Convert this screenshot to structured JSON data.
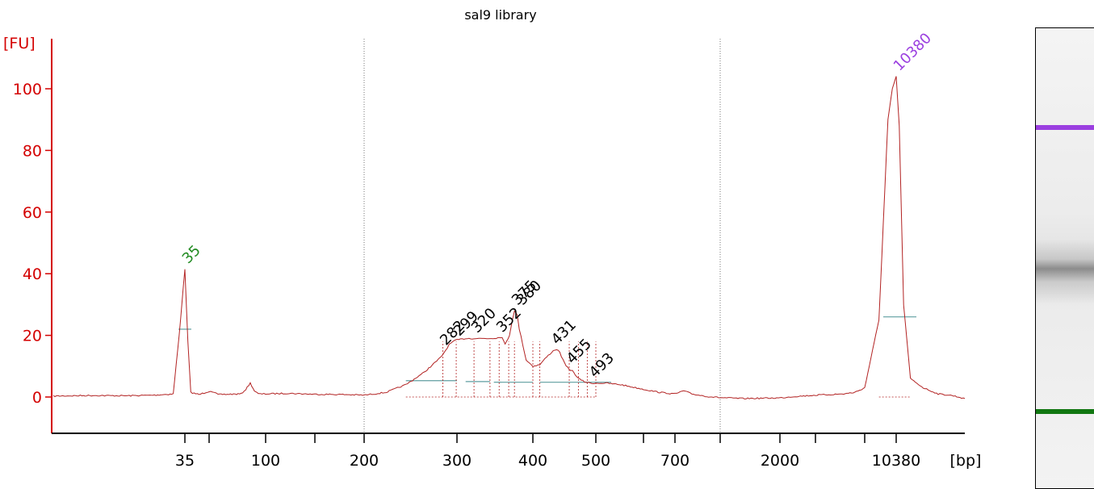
{
  "chart_data": {
    "type": "line",
    "title": "sal9 library",
    "ylabel": "[FU]",
    "xlabel": "[bp]",
    "ylim": [
      -11,
      116
    ],
    "yticks": [
      0,
      20,
      40,
      60,
      80,
      100
    ],
    "xtick_labels": [
      "35",
      "100",
      "200",
      "300",
      "400",
      "500",
      "700",
      "2000",
      "10380"
    ],
    "x_scale": "ladder (non-linear bp)",
    "grid": "dotted vertical lines at 200 bp and between 700 and 2000 bp",
    "series": [
      {
        "color": "#b22222",
        "x": [
          18,
          22,
          26,
          30,
          33,
          34,
          35,
          36,
          37,
          40,
          45,
          50,
          60,
          70,
          75,
          80,
          85,
          90,
          95,
          100,
          120,
          150,
          180,
          200,
          220,
          240,
          260,
          280,
          285,
          290,
          295,
          300,
          310,
          320,
          330,
          340,
          350,
          356,
          360,
          366,
          370,
          373,
          377,
          380,
          385,
          390,
          400,
          410,
          420,
          430,
          435,
          440,
          445,
          450,
          455,
          460,
          470,
          480,
          490,
          493,
          500,
          520,
          550,
          600,
          650,
          700,
          750,
          800,
          900,
          1000,
          1300,
          1600,
          2000,
          2500,
          3000,
          4000,
          5000,
          7000,
          8000,
          9000,
          9600,
          10000,
          10200,
          10380,
          10550,
          10800,
          11200,
          12000,
          13000,
          14000,
          15000
        ],
        "y": [
          0.3,
          0.5,
          0.4,
          0.6,
          1.0,
          20.0,
          41.5,
          18.0,
          1.5,
          0.8,
          2.0,
          0.8,
          0.9,
          1.0,
          2.5,
          4.5,
          2.0,
          1.0,
          1.0,
          1.0,
          1.2,
          0.9,
          0.8,
          0.6,
          1.5,
          4.0,
          8.0,
          13.0,
          15.0,
          17.0,
          18.0,
          18.5,
          19.0,
          19.0,
          19.0,
          19.0,
          19.2,
          19.5,
          17.0,
          20.0,
          25.0,
          28.0,
          26.5,
          22.0,
          17.0,
          12.0,
          10.0,
          10.5,
          13.0,
          15.0,
          15.5,
          14.5,
          12.0,
          10.0,
          9.0,
          8.5,
          6.0,
          5.0,
          4.5,
          4.5,
          4.5,
          4.5,
          4.0,
          2.5,
          1.5,
          1.0,
          2.0,
          1.0,
          0.2,
          -0.2,
          -0.5,
          -0.4,
          -0.3,
          0.0,
          0.2,
          0.4,
          0.6,
          1.0,
          1.5,
          3.0,
          25.0,
          90.0,
          100.0,
          104.0,
          88.0,
          30.0,
          6.0,
          3.0,
          1.0,
          0.5,
          -0.5
        ]
      }
    ],
    "peak_labels": [
      {
        "text": "35",
        "x": 35,
        "y": 41.5,
        "color": "#228b22"
      },
      {
        "text": "282",
        "x": 282,
        "y": 15.0,
        "color": "#000000"
      },
      {
        "text": "299",
        "x": 299,
        "y": 18.0,
        "color": "#000000"
      },
      {
        "text": "320",
        "x": 320,
        "y": 19.0,
        "color": "#000000"
      },
      {
        "text": "352",
        "x": 352,
        "y": 19.2,
        "color": "#000000"
      },
      {
        "text": "375",
        "x": 373,
        "y": 28.0,
        "color": "#000000"
      },
      {
        "text": "380",
        "x": 380,
        "y": 28.0,
        "color": "#000000"
      },
      {
        "text": "431",
        "x": 431,
        "y": 15.2,
        "color": "#000000"
      },
      {
        "text": "455",
        "x": 455,
        "y": 9.0,
        "color": "#000000"
      },
      {
        "text": "493",
        "x": 493,
        "y": 4.5,
        "color": "#000000"
      },
      {
        "text": "10380",
        "x": 10380,
        "y": 104.0,
        "color": "#9b3fe0"
      }
    ],
    "region_baselines": [
      {
        "x_start": 240,
        "x_end": 300,
        "y": 5.3
      },
      {
        "x_start": 310,
        "x_end": 340,
        "y": 5.0
      },
      {
        "x_start": 345,
        "x_end": 356,
        "y": 4.8
      },
      {
        "x_start": 356,
        "x_end": 400,
        "y": 4.8
      },
      {
        "x_start": 410,
        "x_end": 470,
        "y": 4.8
      },
      {
        "x_start": 470,
        "x_end": 530,
        "y": 4.8
      }
    ],
    "colors": {
      "axis": "#d40000",
      "trace": "#b22222",
      "marker_green": "#228b22",
      "marker_purple": "#9b3fe0",
      "baseline": "#5f9ea0"
    }
  },
  "gel": {
    "bands": [
      {
        "label": "upper-marker",
        "color": "#9b3fe0",
        "fraction": 0.215,
        "thick": 6
      },
      {
        "label": "library-smear",
        "color": "#888888",
        "fraction": 0.53,
        "thick": 30
      },
      {
        "label": "lower-marker",
        "color": "#117711",
        "fraction": 0.833,
        "thick": 6
      }
    ]
  }
}
